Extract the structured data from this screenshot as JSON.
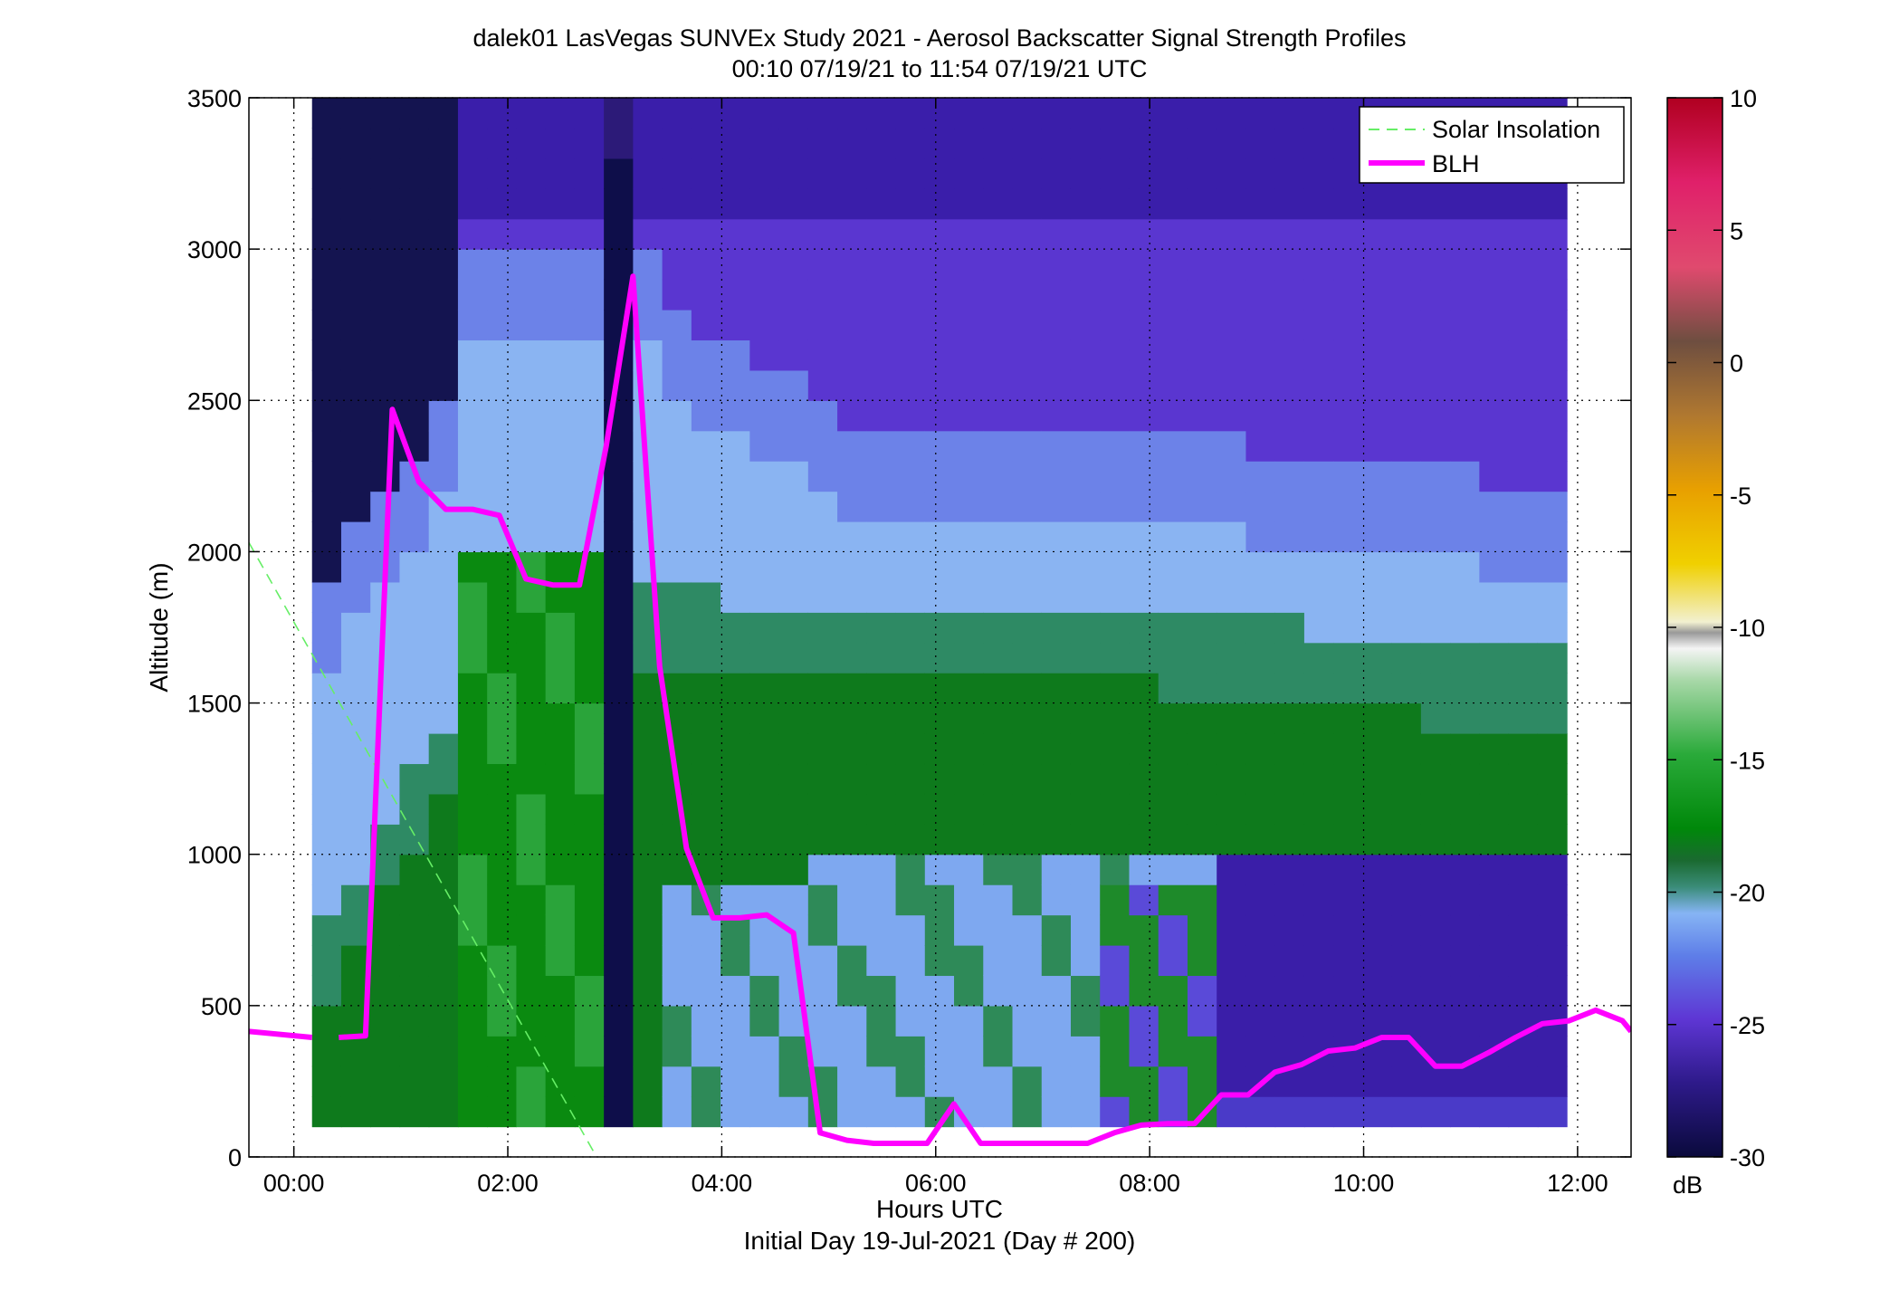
{
  "chart_data": {
    "type": "heatmap",
    "title": "dalek01 LasVegas SUNVEx Study 2021 - Aerosol Backscatter Signal Strength Profiles",
    "subtitle": "00:10 07/19/21 to 11:54 07/19/21  UTC",
    "xlabel": "Hours UTC",
    "xlabel2": "Initial Day 19-Jul-2021 (Day # 200)",
    "ylabel": "Altitude (m)",
    "colorbar_unit": "dB",
    "xlim": [
      -0.42,
      12.5
    ],
    "ylim": [
      0,
      3500
    ],
    "x_ticks": [
      0,
      2,
      4,
      6,
      8,
      10,
      12
    ],
    "x_tick_labels": [
      "00:00",
      "02:00",
      "04:00",
      "06:00",
      "08:00",
      "10:00",
      "12:00"
    ],
    "y_ticks": [
      0,
      500,
      1000,
      1500,
      2000,
      2500,
      3000,
      3500
    ],
    "y_tick_labels": [
      "0",
      "500",
      "1000",
      "1500",
      "2000",
      "2500",
      "3000",
      "3500"
    ],
    "colorbar_range": [
      -30,
      10
    ],
    "colorbar_ticks": [
      -30,
      -25,
      -20,
      -15,
      -10,
      -5,
      0,
      5,
      10
    ],
    "colorbar_tick_labels": [
      "-30",
      "-25",
      "-20",
      "-15",
      "-10",
      "-5",
      "0",
      "5",
      "10"
    ],
    "grid": "dotted",
    "legend_position": "top-right",
    "heatmap_extent": {
      "x": [
        0.17,
        11.9
      ],
      "y": [
        100,
        3500
      ]
    },
    "series": [
      {
        "name": "Solar Insolation",
        "style": "dashed",
        "color": "#66ee66",
        "x": [
          -0.42,
          2.83
        ],
        "y": [
          2030,
          0
        ]
      },
      {
        "name": "BLH",
        "style": "solid",
        "color": "#ff00ff",
        "segments": [
          {
            "x": [
              -0.42,
              0.17
            ],
            "y": [
              415,
              395
            ]
          },
          {
            "x": [
              0.42,
              0.67,
              0.92,
              1.17,
              1.42,
              1.67,
              1.92,
              2.17,
              2.42,
              2.67,
              2.92,
              3.17,
              3.42,
              3.67,
              3.92,
              4.17,
              4.42,
              4.67,
              4.92,
              5.17,
              5.42,
              5.67,
              5.92,
              6.17,
              6.42,
              6.67,
              6.92,
              7.17,
              7.42,
              7.67,
              7.92,
              8.17,
              8.42,
              8.67,
              8.92,
              9.17,
              9.42,
              9.67,
              9.92,
              10.17,
              10.42,
              10.67,
              10.92,
              11.17,
              11.42,
              11.67,
              11.92,
              12.17,
              12.42,
              12.5
            ],
            "y": [
              395,
              400,
              2470,
              2230,
              2140,
              2140,
              2120,
              1910,
              1890,
              1890,
              2350,
              2910,
              1620,
              1020,
              790,
              790,
              800,
              740,
              80,
              55,
              45,
              45,
              45,
              175,
              45,
              45,
              45,
              45,
              45,
              80,
              105,
              110,
              110,
              205,
              205,
              280,
              305,
              350,
              360,
              395,
              395,
              300,
              300,
              345,
              395,
              440,
              450,
              485,
              450,
              415
            ]
          }
        ]
      }
    ]
  }
}
